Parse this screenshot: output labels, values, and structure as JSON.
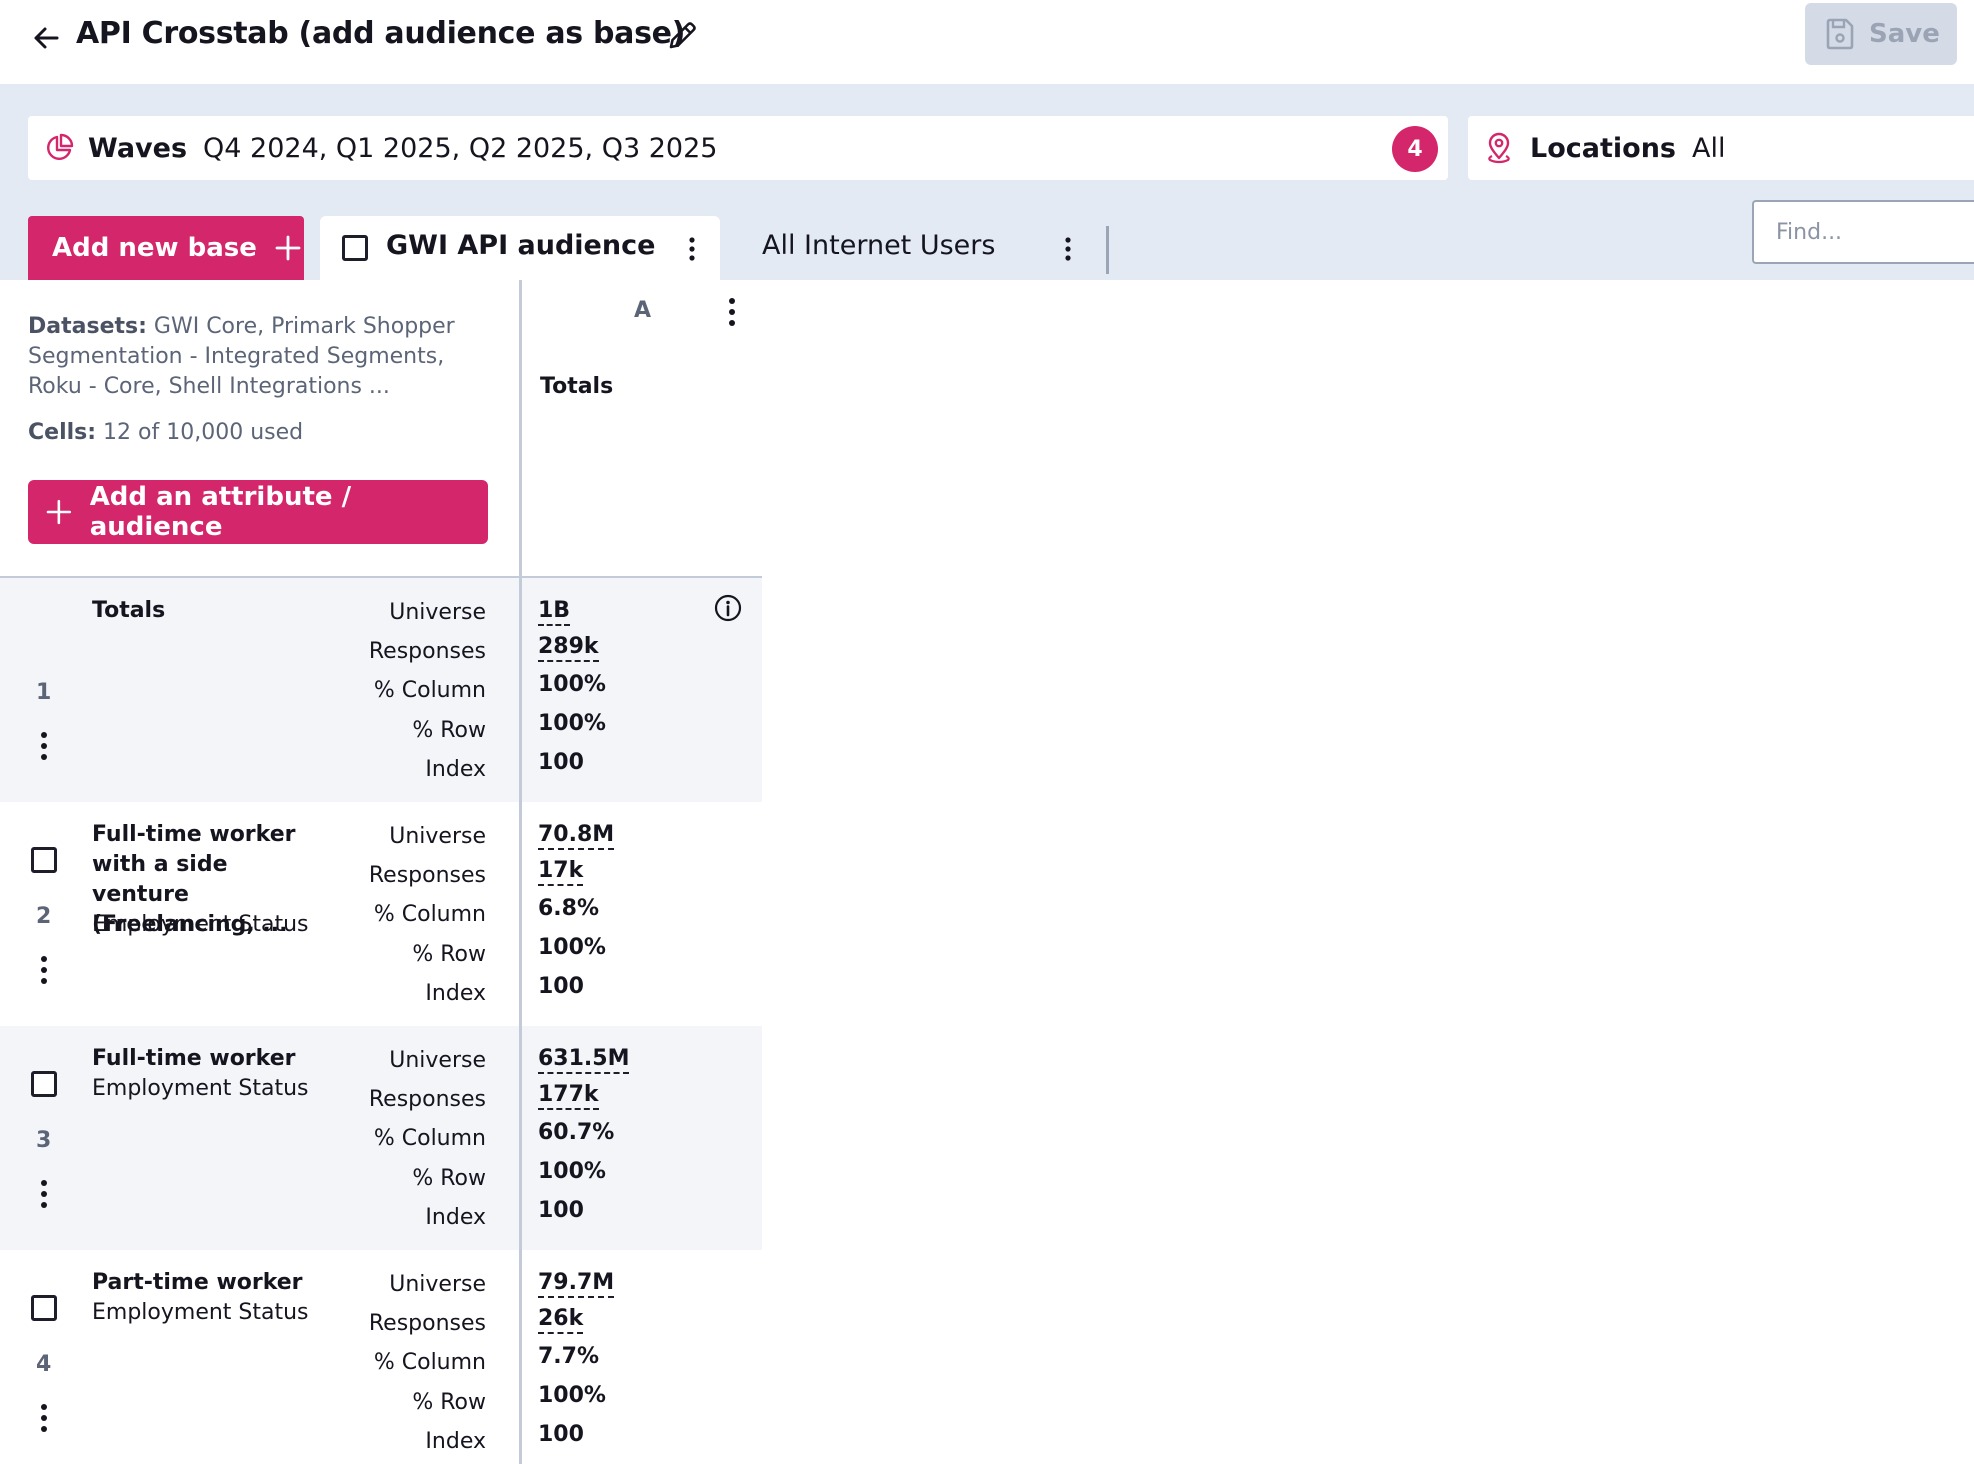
{
  "header": {
    "title": "API Crosstab (add audience as base)",
    "save_label": "Save"
  },
  "filters": {
    "waves_label": "Waves",
    "waves_value": "Q4 2024, Q1 2025, Q2 2025, Q3 2025",
    "waves_count": "4",
    "locations_label": "Locations",
    "locations_value": "All"
  },
  "bases": {
    "add_label": "Add new base",
    "tabs": [
      {
        "label": "GWI API audience"
      },
      {
        "label": "All Internet Users"
      }
    ]
  },
  "search": {
    "placeholder": "Find..."
  },
  "info": {
    "datasets_label": "Datasets:",
    "datasets_value": "GWI Core, Primark Shopper Segmentation - Integrated Segments, Roku - Core, Shell Integrations ...",
    "cells_label": "Cells:",
    "cells_value": "12 of 10,000 used",
    "add_attribute_label": "Add an attribute / audience"
  },
  "column": {
    "letter": "A",
    "title": "Totals"
  },
  "metric_labels": [
    "Universe",
    "Responses",
    "% Column",
    "% Row",
    "Index"
  ],
  "rows": [
    {
      "number": "1",
      "title": "Totals",
      "subtitle": "",
      "values": [
        "1B",
        "289k",
        "100%",
        "100%",
        "100"
      ]
    },
    {
      "number": "2",
      "title": "Full-time worker with a side venture (Freelancing, ...",
      "subtitle": "Employment Status",
      "values": [
        "70.8M",
        "17k",
        "6.8%",
        "100%",
        "100"
      ]
    },
    {
      "number": "3",
      "title": "Full-time worker",
      "subtitle": "Employment Status",
      "values": [
        "631.5M",
        "177k",
        "60.7%",
        "100%",
        "100"
      ]
    },
    {
      "number": "4",
      "title": "Part-time worker",
      "subtitle": "Employment Status",
      "values": [
        "79.7M",
        "26k",
        "7.7%",
        "100%",
        "100"
      ]
    }
  ],
  "colors": {
    "accent": "#d3266b",
    "filter_bg": "#e4eaf3",
    "row_shade": "#f3f5f9",
    "save_disabled": "#d4dbe6"
  }
}
